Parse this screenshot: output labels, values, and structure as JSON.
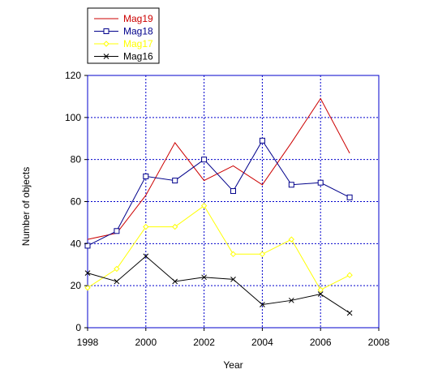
{
  "chart_data": {
    "type": "line",
    "title": "",
    "xlabel": "Year",
    "ylabel": "Number of objects",
    "xlim": [
      1998,
      2008
    ],
    "ylim": [
      0,
      120
    ],
    "xticks": [
      "1998",
      "2000",
      "2002",
      "2004",
      "2006",
      "2008"
    ],
    "yticks": [
      "0",
      "20",
      "40",
      "60",
      "80",
      "100",
      "120"
    ],
    "grid": true,
    "legend_position": "top-left-outside",
    "x": [
      1998,
      1999,
      2000,
      2001,
      2002,
      2003,
      2004,
      2005,
      2006,
      2007
    ],
    "series": [
      {
        "name": "Mag19",
        "color": "#cc0000",
        "marker": "none",
        "values": [
          42,
          45,
          63,
          88,
          70,
          77,
          68,
          88,
          109,
          83
        ]
      },
      {
        "name": "Mag18",
        "color": "#00008b",
        "marker": "square",
        "values": [
          39,
          46,
          72,
          70,
          80,
          65,
          89,
          68,
          69,
          62
        ]
      },
      {
        "name": "Mag17",
        "color": "#ffff00",
        "marker": "diamond",
        "values": [
          19,
          28,
          48,
          48,
          58,
          35,
          35,
          42,
          18,
          25
        ]
      },
      {
        "name": "Mag16",
        "color": "#000000",
        "marker": "x",
        "values": [
          26,
          22,
          34,
          22,
          24,
          23,
          11,
          13,
          16,
          7
        ]
      }
    ],
    "frame_color": "#0000cc",
    "grid_color": "#0000cc"
  }
}
